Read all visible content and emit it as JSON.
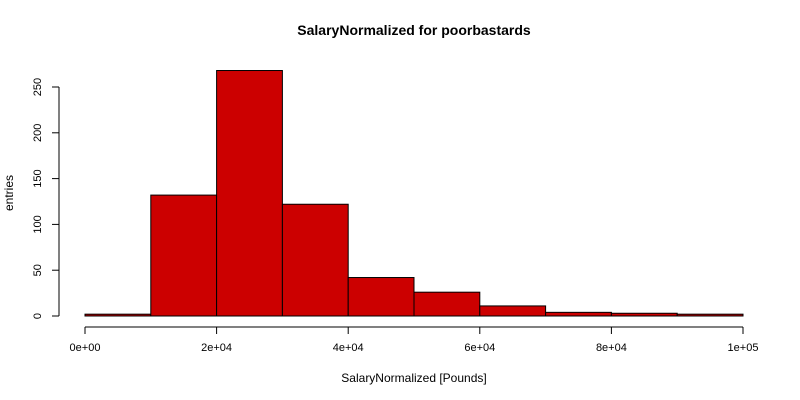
{
  "chart_data": {
    "type": "bar",
    "subtype": "histogram",
    "title": "SalaryNormalized for poorbastards",
    "xlabel": "SalaryNormalized [Pounds]",
    "ylabel": "entries",
    "bin_edges": [
      0,
      10000,
      20000,
      30000,
      40000,
      50000,
      60000,
      70000,
      80000,
      90000,
      100000
    ],
    "values": [
      2,
      132,
      268,
      122,
      42,
      26,
      11,
      4,
      3,
      2
    ],
    "xlim": [
      0,
      100000
    ],
    "ylim": [
      0,
      250
    ],
    "x_ticks": [
      0,
      20000,
      40000,
      60000,
      80000,
      100000
    ],
    "x_tick_labels": [
      "0e+00",
      "2e+04",
      "4e+04",
      "6e+04",
      "8e+04",
      "1e+05"
    ],
    "y_ticks": [
      0,
      50,
      100,
      150,
      200,
      250
    ],
    "y_tick_labels": [
      "0",
      "50",
      "100",
      "150",
      "200",
      "250"
    ],
    "bar_color": "#cc0000",
    "edge_color": "#000000",
    "grid": false,
    "legend": "none"
  }
}
